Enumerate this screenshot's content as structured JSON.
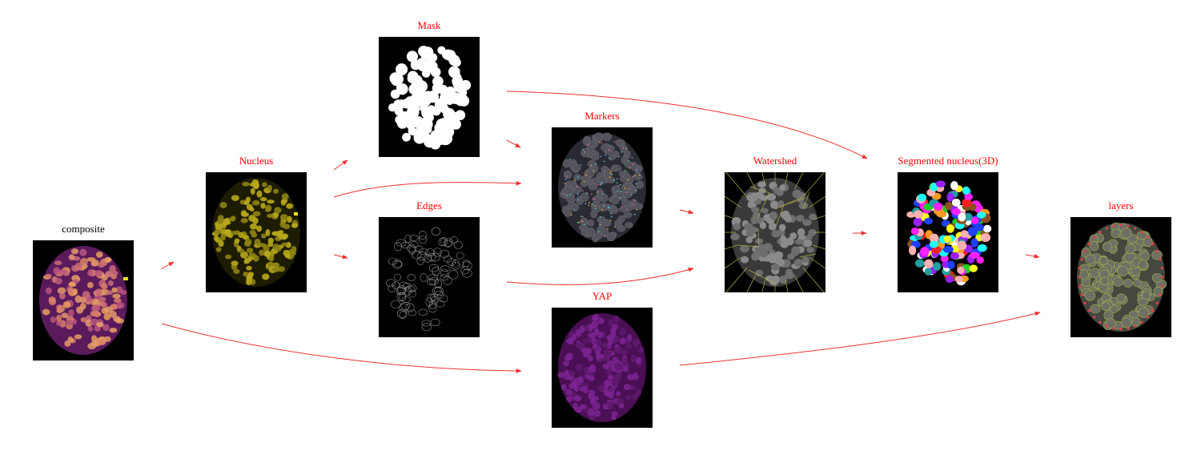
{
  "colors": {
    "arrow": "#f03030",
    "label_default": "#000000",
    "label_accent": "#ff0000"
  },
  "nodes": [
    {
      "id": "composite",
      "label": "composite",
      "label_color": "#000000",
      "style": "composite"
    },
    {
      "id": "nucleus",
      "label": "Nucleus",
      "label_color": "#ff0000",
      "style": "nucleus"
    },
    {
      "id": "mask",
      "label": "Mask",
      "label_color": "#ff0000",
      "style": "mask"
    },
    {
      "id": "edges",
      "label": "Edges",
      "label_color": "#ff0000",
      "style": "edges"
    },
    {
      "id": "markers",
      "label": "Markers",
      "label_color": "#ff0000",
      "style": "markers"
    },
    {
      "id": "yap",
      "label": "YAP",
      "label_color": "#ff0000",
      "style": "yap"
    },
    {
      "id": "watershed",
      "label": "Watershed",
      "label_color": "#ff0000",
      "style": "watershed"
    },
    {
      "id": "segmented",
      "label": "Segmented nucleus(3D)",
      "label_color": "#ff0000",
      "style": "segmented"
    },
    {
      "id": "layers",
      "label": "layers",
      "label_color": "#ff0000",
      "style": "layers"
    }
  ],
  "edges": [
    {
      "from": "composite",
      "to": "nucleus"
    },
    {
      "from": "composite",
      "to": "yap"
    },
    {
      "from": "nucleus",
      "to": "mask"
    },
    {
      "from": "nucleus",
      "to": "markers"
    },
    {
      "from": "nucleus",
      "to": "edges"
    },
    {
      "from": "mask",
      "to": "markers"
    },
    {
      "from": "mask",
      "to": "segmented"
    },
    {
      "from": "markers",
      "to": "watershed"
    },
    {
      "from": "edges",
      "to": "watershed"
    },
    {
      "from": "watershed",
      "to": "segmented"
    },
    {
      "from": "segmented",
      "to": "layers"
    },
    {
      "from": "yap",
      "to": "layers"
    }
  ]
}
